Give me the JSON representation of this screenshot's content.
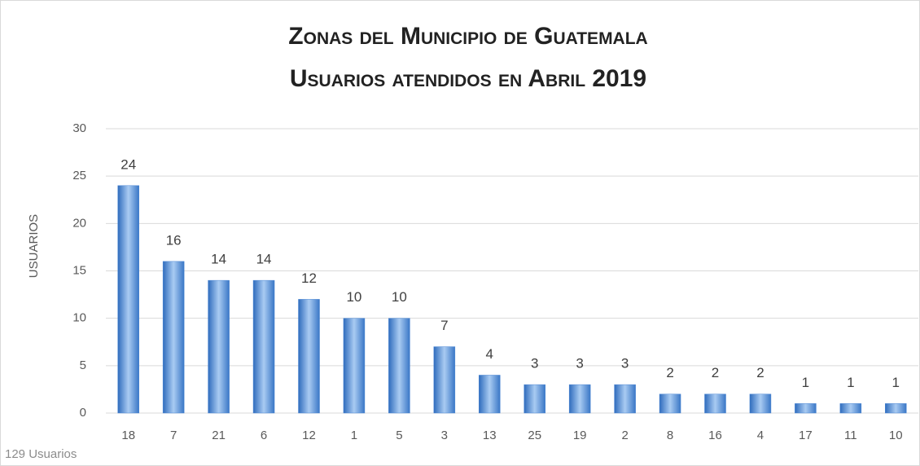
{
  "chart_data": {
    "type": "bar",
    "title": "Zonas del Municipio de Guatemala",
    "subtitle": "Usuarios atendidos en Abril 2019",
    "y_label": "USUARIOS",
    "annotation": "129 Usuarios",
    "categories": [
      "18",
      "7",
      "21",
      "6",
      "12",
      "1",
      "5",
      "3",
      "13",
      "25",
      "19",
      "2",
      "8",
      "16",
      "4",
      "17",
      "11",
      "10"
    ],
    "values": [
      24,
      16,
      14,
      14,
      12,
      10,
      10,
      7,
      4,
      3,
      3,
      3,
      2,
      2,
      2,
      1,
      1,
      1
    ],
    "color": "#4a86d4",
    "ylim": [
      0,
      30
    ],
    "yticks": [
      0,
      5,
      10,
      15,
      20,
      25,
      30
    ],
    "grid": true,
    "data_labels": true
  }
}
